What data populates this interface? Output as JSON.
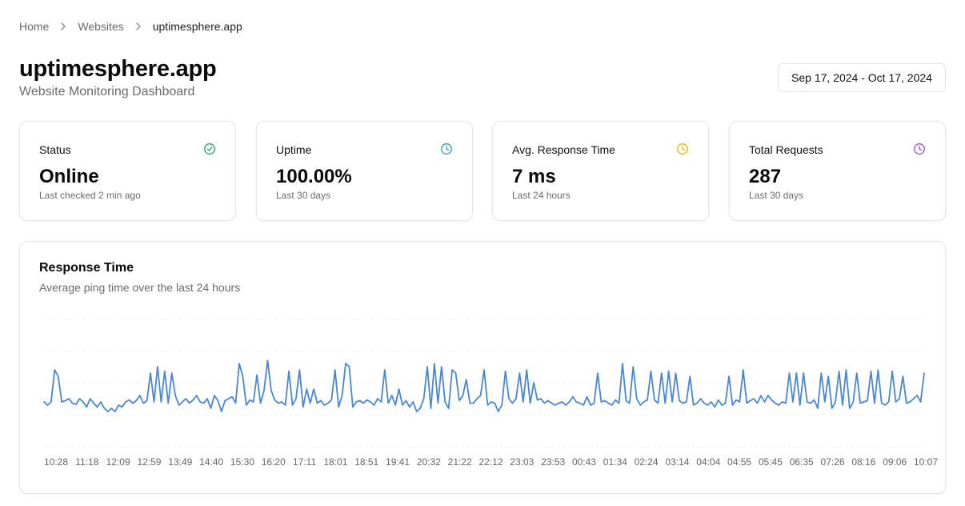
{
  "breadcrumb": {
    "items": [
      {
        "label": "Home"
      },
      {
        "label": "Websites"
      },
      {
        "label": "uptimesphere.app"
      }
    ]
  },
  "header": {
    "title": "uptimesphere.app",
    "subtitle": "Website Monitoring Dashboard",
    "date_range": "Sep 17, 2024 - Oct 17, 2024"
  },
  "stats": [
    {
      "label": "Status",
      "value": "Online",
      "sub": "Last checked 2 min ago",
      "icon": "check-circle-icon",
      "color": "#22a06b"
    },
    {
      "label": "Uptime",
      "value": "100.00%",
      "sub": "Last 30 days",
      "icon": "clock-icon",
      "color": "#3b8fc4"
    },
    {
      "label": "Avg. Response Time",
      "value": "7 ms",
      "sub": "Last 24 hours",
      "icon": "clock-icon",
      "color": "#e3b20f"
    },
    {
      "label": "Total Requests",
      "value": "287",
      "sub": "Last 30 days",
      "icon": "clock-icon",
      "color": "#a24fc4"
    }
  ],
  "response_chart": {
    "title": "Response Time",
    "subtitle": "Average ping time over the last 24 hours"
  },
  "chart_data": {
    "type": "line",
    "title": "Response Time",
    "subtitle": "Average ping time over the last 24 hours",
    "color": "#4a86d4",
    "grid": true,
    "x_ticks": [
      "10:28",
      "11:18",
      "12:09",
      "12:59",
      "13:49",
      "14:40",
      "15:30",
      "16:20",
      "17:11",
      "18:01",
      "18:51",
      "19:41",
      "20:32",
      "21:22",
      "22:12",
      "23:03",
      "23:53",
      "00:43",
      "01:34",
      "02:24",
      "03:14",
      "04:04",
      "04:55",
      "05:45",
      "06:35",
      "07:26",
      "08:16",
      "09:06",
      "10:07"
    ],
    "ylim": [
      0,
      20
    ],
    "values": [
      7,
      6.5,
      7,
      12,
      11,
      7,
      7.2,
      7.5,
      6.8,
      6.6,
      7.5,
      7,
      6.2,
      7.5,
      6.8,
      6.2,
      7,
      6,
      5.5,
      6,
      5.5,
      6.5,
      6.2,
      7,
      7.3,
      6.8,
      7.2,
      8,
      6.8,
      7.2,
      11.5,
      7,
      12.5,
      7,
      11.8,
      6.8,
      11.5,
      8,
      6.5,
      7,
      7.5,
      6.8,
      7.3,
      8,
      7,
      6.8,
      7.5,
      6,
      8,
      7.2,
      5.5,
      7.2,
      7.5,
      7.8,
      6.8,
      13,
      11,
      6.5,
      7.3,
      7,
      11.2,
      6.8,
      8.8,
      13.5,
      8.8,
      7.3,
      6.8,
      7,
      6.5,
      11.8,
      6.5,
      7.5,
      12,
      6.2,
      9,
      6.8,
      9,
      6.8,
      7.2,
      6.5,
      6.8,
      7.3,
      12,
      6.2,
      8,
      13,
      12.5,
      6.2,
      7,
      7.2,
      6.8,
      7.3,
      7,
      6.5,
      7.5,
      7,
      12,
      6.8,
      8,
      6.5,
      9,
      6.5,
      7.2,
      6.2,
      7,
      5.5,
      6,
      7.5,
      12.5,
      6,
      13,
      6.8,
      12.5,
      7,
      6,
      12,
      11.5,
      7.2,
      8,
      10.5,
      6.8,
      6.8,
      7.5,
      8,
      12,
      6.5,
      7,
      6.8,
      5.5,
      6.5,
      11.8,
      7.5,
      6.8,
      7.5,
      11.5,
      7,
      12,
      6.8,
      10,
      7.3,
      7.5,
      6.8,
      7.2,
      6.8,
      6.5,
      6.8,
      7,
      6.5,
      7,
      7.8,
      7,
      6.8,
      6.5,
      7.8,
      6.5,
      6.8,
      11.5,
      7,
      7.2,
      6.8,
      6.5,
      7.3,
      6.8,
      13,
      7.2,
      6.8,
      12.5,
      7.5,
      6.5,
      7,
      7.3,
      11.8,
      7.3,
      6.8,
      11.5,
      6.8,
      11.8,
      7,
      11.5,
      7.2,
      6.8,
      7,
      11,
      6.5,
      6.8,
      7.5,
      6.8,
      6.5,
      7,
      6.2,
      7.3,
      6.5,
      6.8,
      11,
      6.5,
      7.3,
      7,
      12,
      6.8,
      7.2,
      7.5,
      6.8,
      8,
      7,
      8,
      7.3,
      6.8,
      6.5,
      7,
      6.8,
      11.5,
      7,
      11.5,
      6.5,
      11.5,
      7,
      6.8,
      7.3,
      6,
      11.5,
      7,
      11,
      6,
      7,
      11.8,
      6.5,
      12,
      6,
      7,
      11.5,
      6.8,
      7,
      7.2,
      11.8,
      6.8,
      12,
      6.8,
      6.5,
      7,
      11.8,
      7,
      7.5,
      11,
      6.8,
      7,
      7.5,
      8,
      7,
      11.5
    ]
  }
}
